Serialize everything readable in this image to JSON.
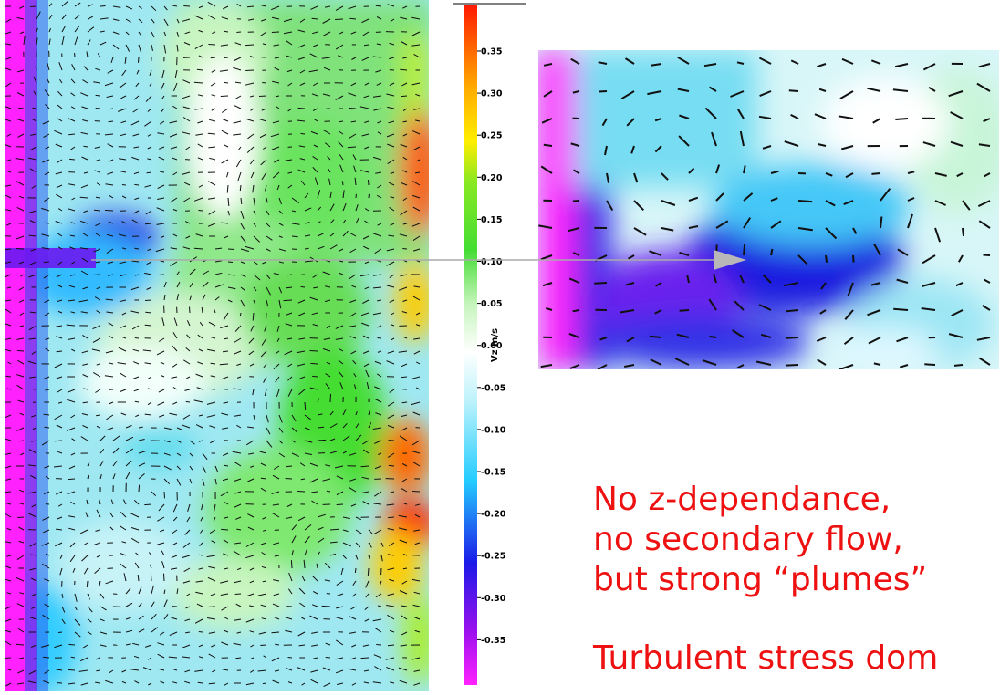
{
  "colorbar": {
    "label": "Vz m/s",
    "ticks": [
      "0.35",
      "0.30",
      "0.25",
      "0.20",
      "0.15",
      "0.10",
      "0.05",
      "0.00",
      "-0.05",
      "-0.10",
      "-0.15",
      "-0.20",
      "-0.25",
      "-0.30",
      "-0.35"
    ],
    "colors": [
      "#ff22ff",
      "#8800ee",
      "#1a1ae8",
      "#3366ff",
      "#22ddff",
      "#dcf6fb",
      "#ffffff",
      "#c8f5c0",
      "#66ee44",
      "#22dd22",
      "#aaee22",
      "#ffee00",
      "#ffaa00",
      "#ff6600",
      "#ff2200"
    ]
  },
  "caption": {
    "line1": "No z-dependance,",
    "line2": "no secondary flow,",
    "line3": "but strong “plumes”",
    "line4": "Turbulent stress dom"
  }
}
